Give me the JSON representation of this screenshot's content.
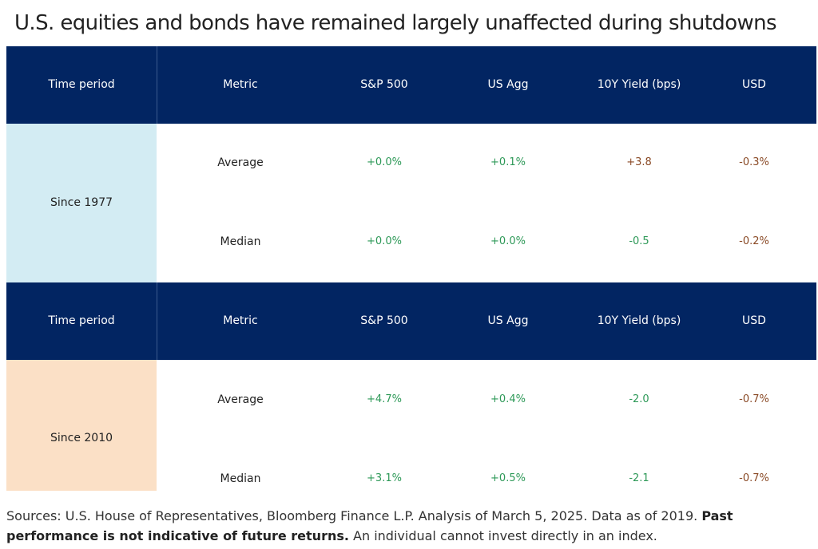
{
  "title": "U.S. equities and bonds have remained largely unaffected during shutdowns",
  "headers": [
    "Time period",
    "Metric",
    "S&P 500",
    "US Agg",
    "10Y Yield (bps)",
    "USD"
  ],
  "colors": {
    "header_bg": "#022562",
    "since1977_bg": "#d3ecf3",
    "since2010_bg": "#fbe0c6",
    "positive_text": "#2e9958",
    "negative_text": "#8a4a26"
  },
  "chart_data": {
    "type": "table",
    "title": "U.S. equities and bonds have remained largely unaffected during shutdowns",
    "columns": [
      "Time period",
      "Metric",
      "S&P 500",
      "US Agg",
      "10Y Yield (bps)",
      "USD"
    ],
    "groups": [
      {
        "period": "Since 1977",
        "rows": [
          {
            "metric": "Average",
            "sp500": "+0.0%",
            "us_agg": "+0.1%",
            "yield_10y": "+3.8",
            "usd": "-0.3%"
          },
          {
            "metric": "Median",
            "sp500": "+0.0%",
            "us_agg": "+0.0%",
            "yield_10y": "-0.5",
            "usd": "-0.2%"
          }
        ]
      },
      {
        "period": "Since 2010",
        "rows": [
          {
            "metric": "Average",
            "sp500": "+4.7%",
            "us_agg": "+0.4%",
            "yield_10y": "-2.0",
            "usd": "-0.7%"
          },
          {
            "metric": "Median",
            "sp500": "+3.1%",
            "us_agg": "+0.5%",
            "yield_10y": "-2.1",
            "usd": "-0.7%"
          }
        ]
      }
    ]
  },
  "source": {
    "text": "Sources: U.S. House of Representatives, Bloomberg Finance L.P. Analysis of March 5, 2025. Data as of 2019. ",
    "bold": "Past performance is not indicative of future returns.",
    "tail": " An individual cannot invest directly in an index."
  }
}
